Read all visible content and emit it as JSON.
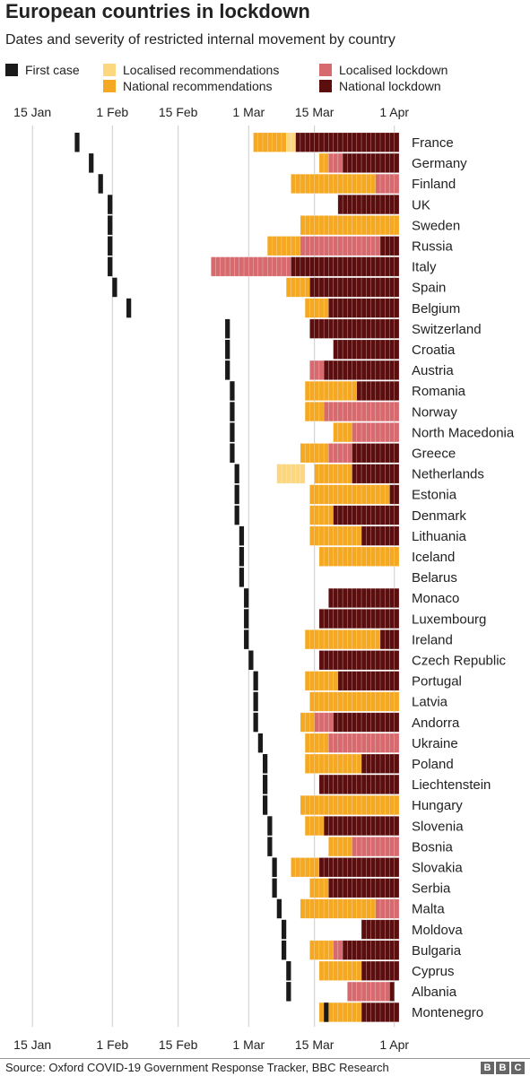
{
  "header": {
    "title": "European countries in lockdown",
    "subtitle": "Dates and severity of restricted internal movement by country"
  },
  "legend": [
    {
      "key": "first",
      "label": "First case",
      "color": "#1a1a1a"
    },
    {
      "key": "lrec",
      "label": "Localised recommendations",
      "color": "#fcd77f"
    },
    {
      "key": "nrec",
      "label": "National recommendations",
      "color": "#f5a822"
    },
    {
      "key": "llock",
      "label": "Localised lockdown",
      "color": "#d66a6e"
    },
    {
      "key": "nlock",
      "label": "National lockdown",
      "color": "#5c0e0e"
    }
  ],
  "footer": {
    "source": "Source: Oxford COVID-19 Government Response Tracker, BBC Research",
    "logo": [
      "B",
      "B",
      "C"
    ]
  },
  "chart_data": {
    "type": "table",
    "title": "European countries in lockdown",
    "subtitle": "Dates and severity of restricted internal movement by country",
    "date_domain": [
      "2020-01-10",
      "2020-04-02"
    ],
    "x_ticks": [
      {
        "label": "15 Jan",
        "date": "2020-01-15"
      },
      {
        "label": "1 Feb",
        "date": "2020-02-01"
      },
      {
        "label": "15 Feb",
        "date": "2020-02-15"
      },
      {
        "label": "1 Mar",
        "date": "2020-03-01"
      },
      {
        "label": "15 Mar",
        "date": "2020-03-15"
      },
      {
        "label": "1 Apr",
        "date": "2020-04-01"
      }
    ],
    "grid": true,
    "legend_position": "top",
    "countries": [
      {
        "name": "France",
        "first_case": "2020-01-24",
        "periods": [
          [
            "2020-03-02",
            "2020-03-09",
            "nrec"
          ],
          [
            "2020-03-09",
            "2020-03-11",
            "lrec"
          ],
          [
            "2020-03-11",
            "2020-04-02",
            "nlock"
          ]
        ]
      },
      {
        "name": "Germany",
        "first_case": "2020-01-27",
        "periods": [
          [
            "2020-03-16",
            "2020-03-18",
            "nrec"
          ],
          [
            "2020-03-18",
            "2020-03-21",
            "llock"
          ],
          [
            "2020-03-21",
            "2020-04-02",
            "nlock"
          ]
        ]
      },
      {
        "name": "Finland",
        "first_case": "2020-01-29",
        "periods": [
          [
            "2020-03-10",
            "2020-03-28",
            "nrec"
          ],
          [
            "2020-03-28",
            "2020-04-02",
            "llock"
          ]
        ]
      },
      {
        "name": "UK",
        "first_case": "2020-01-31",
        "periods": [
          [
            "2020-03-20",
            "2020-04-02",
            "nlock"
          ]
        ]
      },
      {
        "name": "Sweden",
        "first_case": "2020-01-31",
        "periods": [
          [
            "2020-03-12",
            "2020-04-02",
            "nrec"
          ]
        ]
      },
      {
        "name": "Russia",
        "first_case": "2020-01-31",
        "periods": [
          [
            "2020-03-05",
            "2020-03-12",
            "nrec"
          ],
          [
            "2020-03-12",
            "2020-03-29",
            "llock"
          ],
          [
            "2020-03-29",
            "2020-04-02",
            "nlock"
          ]
        ]
      },
      {
        "name": "Italy",
        "first_case": "2020-01-31",
        "periods": [
          [
            "2020-02-22",
            "2020-03-10",
            "llock"
          ],
          [
            "2020-03-10",
            "2020-04-02",
            "nlock"
          ]
        ]
      },
      {
        "name": "Spain",
        "first_case": "2020-02-01",
        "periods": [
          [
            "2020-03-09",
            "2020-03-14",
            "nrec"
          ],
          [
            "2020-03-14",
            "2020-04-02",
            "nlock"
          ]
        ]
      },
      {
        "name": "Belgium",
        "first_case": "2020-02-04",
        "periods": [
          [
            "2020-03-13",
            "2020-03-18",
            "nrec"
          ],
          [
            "2020-03-18",
            "2020-04-02",
            "nlock"
          ]
        ]
      },
      {
        "name": "Switzerland",
        "first_case": "2020-02-25",
        "periods": [
          [
            "2020-03-14",
            "2020-04-02",
            "nlock"
          ]
        ]
      },
      {
        "name": "Croatia",
        "first_case": "2020-02-25",
        "periods": [
          [
            "2020-03-19",
            "2020-04-02",
            "nlock"
          ]
        ]
      },
      {
        "name": "Austria",
        "first_case": "2020-02-25",
        "periods": [
          [
            "2020-03-14",
            "2020-03-17",
            "llock"
          ],
          [
            "2020-03-17",
            "2020-04-02",
            "nlock"
          ]
        ]
      },
      {
        "name": "Romania",
        "first_case": "2020-02-26",
        "periods": [
          [
            "2020-03-13",
            "2020-03-24",
            "nrec"
          ],
          [
            "2020-03-24",
            "2020-04-02",
            "nlock"
          ]
        ]
      },
      {
        "name": "Norway",
        "first_case": "2020-02-26",
        "periods": [
          [
            "2020-03-13",
            "2020-03-17",
            "nrec"
          ],
          [
            "2020-03-17",
            "2020-04-02",
            "llock"
          ]
        ]
      },
      {
        "name": "North Macedonia",
        "first_case": "2020-02-26",
        "periods": [
          [
            "2020-03-19",
            "2020-03-23",
            "nrec"
          ],
          [
            "2020-03-23",
            "2020-04-02",
            "llock"
          ]
        ]
      },
      {
        "name": "Greece",
        "first_case": "2020-02-26",
        "periods": [
          [
            "2020-03-12",
            "2020-03-18",
            "nrec"
          ],
          [
            "2020-03-18",
            "2020-03-23",
            "llock"
          ],
          [
            "2020-03-23",
            "2020-04-02",
            "nlock"
          ]
        ]
      },
      {
        "name": "Netherlands",
        "first_case": "2020-02-27",
        "periods": [
          [
            "2020-03-07",
            "2020-03-13",
            "lrec"
          ],
          [
            "2020-03-15",
            "2020-03-23",
            "nrec"
          ],
          [
            "2020-03-23",
            "2020-04-02",
            "nlock"
          ]
        ]
      },
      {
        "name": "Estonia",
        "first_case": "2020-02-27",
        "periods": [
          [
            "2020-03-14",
            "2020-03-31",
            "nrec"
          ],
          [
            "2020-03-31",
            "2020-04-02",
            "nlock"
          ]
        ]
      },
      {
        "name": "Denmark",
        "first_case": "2020-02-27",
        "periods": [
          [
            "2020-03-14",
            "2020-03-19",
            "nrec"
          ],
          [
            "2020-03-19",
            "2020-04-02",
            "nlock"
          ]
        ]
      },
      {
        "name": "Lithuania",
        "first_case": "2020-02-28",
        "periods": [
          [
            "2020-03-14",
            "2020-03-25",
            "nrec"
          ],
          [
            "2020-03-25",
            "2020-04-02",
            "nlock"
          ]
        ]
      },
      {
        "name": "Iceland",
        "first_case": "2020-02-28",
        "periods": [
          [
            "2020-03-16",
            "2020-04-02",
            "nrec"
          ]
        ]
      },
      {
        "name": "Belarus",
        "first_case": "2020-02-28",
        "periods": []
      },
      {
        "name": "Monaco",
        "first_case": "2020-02-29",
        "periods": [
          [
            "2020-03-18",
            "2020-04-02",
            "nlock"
          ]
        ]
      },
      {
        "name": "Luxembourg",
        "first_case": "2020-02-29",
        "periods": [
          [
            "2020-03-16",
            "2020-04-02",
            "nlock"
          ]
        ]
      },
      {
        "name": "Ireland",
        "first_case": "2020-02-29",
        "periods": [
          [
            "2020-03-13",
            "2020-03-29",
            "nrec"
          ],
          [
            "2020-03-29",
            "2020-04-02",
            "nlock"
          ]
        ]
      },
      {
        "name": "Czech Republic",
        "first_case": "2020-03-01",
        "periods": [
          [
            "2020-03-16",
            "2020-04-02",
            "nlock"
          ]
        ]
      },
      {
        "name": "Portugal",
        "first_case": "2020-03-02",
        "periods": [
          [
            "2020-03-13",
            "2020-03-20",
            "nrec"
          ],
          [
            "2020-03-20",
            "2020-04-02",
            "nlock"
          ]
        ]
      },
      {
        "name": "Latvia",
        "first_case": "2020-03-02",
        "periods": [
          [
            "2020-03-14",
            "2020-04-02",
            "nrec"
          ]
        ]
      },
      {
        "name": "Andorra",
        "first_case": "2020-03-02",
        "periods": [
          [
            "2020-03-12",
            "2020-03-15",
            "nrec"
          ],
          [
            "2020-03-15",
            "2020-03-19",
            "llock"
          ],
          [
            "2020-03-19",
            "2020-04-02",
            "nlock"
          ]
        ]
      },
      {
        "name": "Ukraine",
        "first_case": "2020-03-03",
        "periods": [
          [
            "2020-03-13",
            "2020-03-18",
            "nrec"
          ],
          [
            "2020-03-18",
            "2020-04-02",
            "llock"
          ]
        ]
      },
      {
        "name": "Poland",
        "first_case": "2020-03-04",
        "periods": [
          [
            "2020-03-13",
            "2020-03-25",
            "nrec"
          ],
          [
            "2020-03-25",
            "2020-04-02",
            "nlock"
          ]
        ]
      },
      {
        "name": "Liechtenstein",
        "first_case": "2020-03-04",
        "periods": [
          [
            "2020-03-16",
            "2020-04-02",
            "nlock"
          ]
        ]
      },
      {
        "name": "Hungary",
        "first_case": "2020-03-04",
        "periods": [
          [
            "2020-03-12",
            "2020-04-02",
            "nrec"
          ]
        ]
      },
      {
        "name": "Slovenia",
        "first_case": "2020-03-05",
        "periods": [
          [
            "2020-03-13",
            "2020-03-17",
            "nrec"
          ],
          [
            "2020-03-17",
            "2020-04-02",
            "nlock"
          ]
        ]
      },
      {
        "name": "Bosnia",
        "first_case": "2020-03-05",
        "periods": [
          [
            "2020-03-18",
            "2020-03-23",
            "nrec"
          ],
          [
            "2020-03-23",
            "2020-04-02",
            "llock"
          ]
        ]
      },
      {
        "name": "Slovakia",
        "first_case": "2020-03-06",
        "periods": [
          [
            "2020-03-10",
            "2020-03-16",
            "nrec"
          ],
          [
            "2020-03-16",
            "2020-04-02",
            "nlock"
          ]
        ]
      },
      {
        "name": "Serbia",
        "first_case": "2020-03-06",
        "periods": [
          [
            "2020-03-14",
            "2020-03-18",
            "nrec"
          ],
          [
            "2020-03-18",
            "2020-04-02",
            "nlock"
          ]
        ]
      },
      {
        "name": "Malta",
        "first_case": "2020-03-07",
        "periods": [
          [
            "2020-03-12",
            "2020-03-28",
            "nrec"
          ],
          [
            "2020-03-28",
            "2020-04-02",
            "llock"
          ]
        ]
      },
      {
        "name": "Moldova",
        "first_case": "2020-03-08",
        "periods": [
          [
            "2020-03-25",
            "2020-04-02",
            "nlock"
          ]
        ]
      },
      {
        "name": "Bulgaria",
        "first_case": "2020-03-08",
        "periods": [
          [
            "2020-03-14",
            "2020-03-19",
            "nrec"
          ],
          [
            "2020-03-19",
            "2020-03-21",
            "llock"
          ],
          [
            "2020-03-21",
            "2020-04-02",
            "nlock"
          ]
        ]
      },
      {
        "name": "Cyprus",
        "first_case": "2020-03-09",
        "periods": [
          [
            "2020-03-16",
            "2020-03-25",
            "nrec"
          ],
          [
            "2020-03-25",
            "2020-04-02",
            "nlock"
          ]
        ]
      },
      {
        "name": "Albania",
        "first_case": "2020-03-09",
        "periods": [
          [
            "2020-03-22",
            "2020-03-31",
            "llock"
          ],
          [
            "2020-03-31",
            "2020-04-01",
            "nlock"
          ]
        ]
      },
      {
        "name": "Montenegro",
        "first_case": "2020-03-17",
        "periods": [
          [
            "2020-03-16",
            "2020-03-19",
            "nrec"
          ],
          [
            "2020-03-19",
            "2020-03-25",
            "nrec"
          ],
          [
            "2020-03-25",
            "2020-04-02",
            "nlock"
          ]
        ]
      }
    ]
  }
}
